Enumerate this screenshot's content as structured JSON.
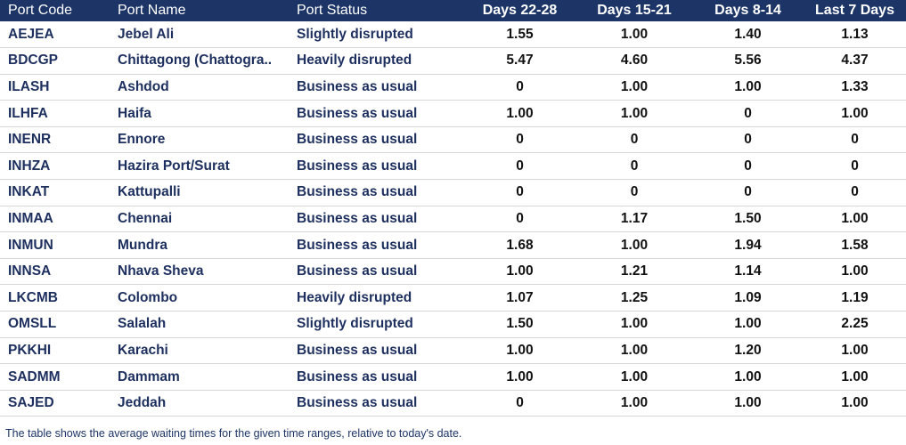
{
  "table": {
    "headers": [
      "Port Code",
      "Port Name",
      "Port Status",
      "Days 22-28",
      "Days 15-21",
      "Days 8-14",
      "Last 7 Days"
    ],
    "rows": [
      {
        "code": "AEJEA",
        "name": "Jebel Ali",
        "status": "Slightly disrupted",
        "d22_28": "1.55",
        "d15_21": "1.00",
        "d8_14": "1.40",
        "last7": "1.13"
      },
      {
        "code": "BDCGP",
        "name": "Chittagong (Chattogra..",
        "status": "Heavily disrupted",
        "d22_28": "5.47",
        "d15_21": "4.60",
        "d8_14": "5.56",
        "last7": "4.37"
      },
      {
        "code": "ILASH",
        "name": "Ashdod",
        "status": "Business as usual",
        "d22_28": "0",
        "d15_21": "1.00",
        "d8_14": "1.00",
        "last7": "1.33"
      },
      {
        "code": "ILHFA",
        "name": "Haifa",
        "status": "Business as usual",
        "d22_28": "1.00",
        "d15_21": "1.00",
        "d8_14": "0",
        "last7": "1.00"
      },
      {
        "code": "INENR",
        "name": "Ennore",
        "status": "Business as usual",
        "d22_28": "0",
        "d15_21": "0",
        "d8_14": "0",
        "last7": "0"
      },
      {
        "code": "INHZA",
        "name": "Hazira Port/Surat",
        "status": "Business as usual",
        "d22_28": "0",
        "d15_21": "0",
        "d8_14": "0",
        "last7": "0"
      },
      {
        "code": "INKAT",
        "name": "Kattupalli",
        "status": "Business as usual",
        "d22_28": "0",
        "d15_21": "0",
        "d8_14": "0",
        "last7": "0"
      },
      {
        "code": "INMAA",
        "name": "Chennai",
        "status": "Business as usual",
        "d22_28": "0",
        "d15_21": "1.17",
        "d8_14": "1.50",
        "last7": "1.00"
      },
      {
        "code": "INMUN",
        "name": "Mundra",
        "status": "Business as usual",
        "d22_28": "1.68",
        "d15_21": "1.00",
        "d8_14": "1.94",
        "last7": "1.58"
      },
      {
        "code": "INNSA",
        "name": "Nhava Sheva",
        "status": "Business as usual",
        "d22_28": "1.00",
        "d15_21": "1.21",
        "d8_14": "1.14",
        "last7": "1.00"
      },
      {
        "code": "LKCMB",
        "name": "Colombo",
        "status": "Heavily disrupted",
        "d22_28": "1.07",
        "d15_21": "1.25",
        "d8_14": "1.09",
        "last7": "1.19"
      },
      {
        "code": "OMSLL",
        "name": "Salalah",
        "status": "Slightly disrupted",
        "d22_28": "1.50",
        "d15_21": "1.00",
        "d8_14": "1.00",
        "last7": "2.25"
      },
      {
        "code": "PKKHI",
        "name": "Karachi",
        "status": "Business as usual",
        "d22_28": "1.00",
        "d15_21": "1.00",
        "d8_14": "1.20",
        "last7": "1.00"
      },
      {
        "code": "SADMM",
        "name": "Dammam",
        "status": "Business as usual",
        "d22_28": "1.00",
        "d15_21": "1.00",
        "d8_14": "1.00",
        "last7": "1.00"
      },
      {
        "code": "SAJED",
        "name": "Jeddah",
        "status": "Business as usual",
        "d22_28": "0",
        "d15_21": "1.00",
        "d8_14": "1.00",
        "last7": "1.00"
      }
    ]
  },
  "footnote": "The table shows the average waiting times for the given time ranges, relative to today's date.",
  "colors": {
    "header_bg": "#1d3566",
    "header_text": "#ffffff",
    "body_text": "#1d2f5e",
    "row_divider": "#d6d6d6"
  }
}
